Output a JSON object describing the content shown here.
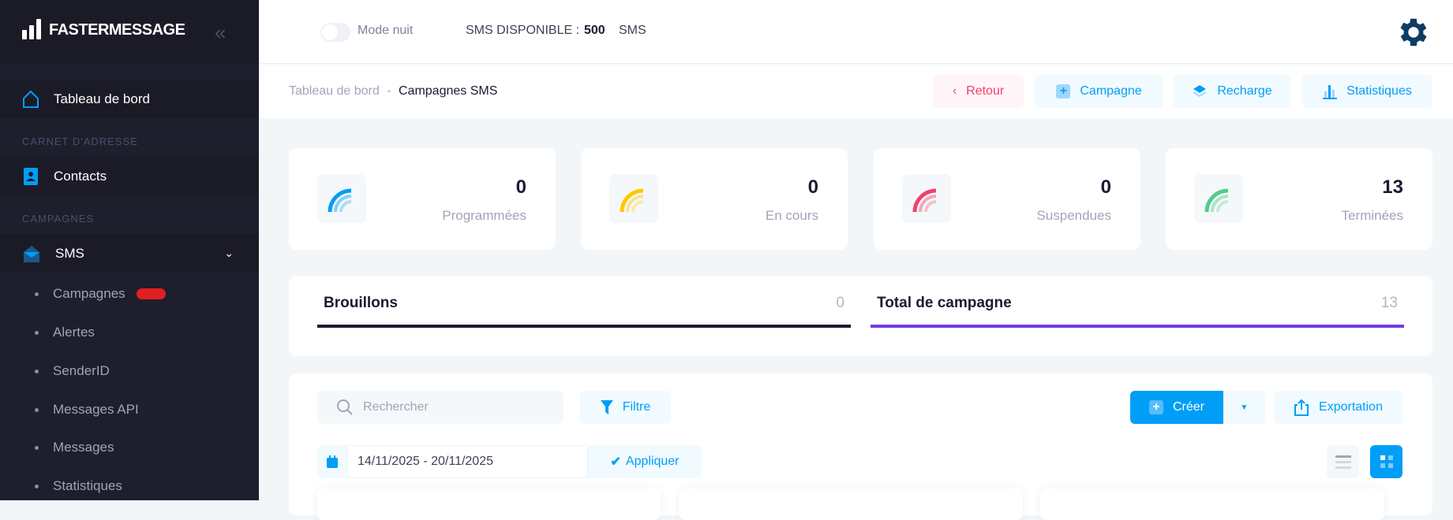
{
  "sidebar": {
    "brand": "FASTERMESSAGE",
    "dashboard": "Tableau de bord",
    "section_contacts": "CARNET D'ADRESSE",
    "contacts": "Contacts",
    "section_campaigns": "CAMPAGNES",
    "sms": "SMS",
    "sms_items": [
      {
        "label": "Campagnes"
      },
      {
        "label": "Alertes"
      },
      {
        "label": "SenderID"
      },
      {
        "label": "Messages API"
      },
      {
        "label": "Messages"
      },
      {
        "label": "Statistiques"
      }
    ]
  },
  "header": {
    "night_mode": "Mode nuit",
    "night_mode_on": false,
    "sms_label": "SMS DISPONIBLE :",
    "sms_count": "500",
    "sms_unit": "SMS"
  },
  "breadcrumb": {
    "parent": "Tableau de bord",
    "separator": "-",
    "current": "Campagnes SMS"
  },
  "toolbar": {
    "back": "Retour",
    "campaign": "Campagne",
    "recharge": "Recharge",
    "stats": "Statistiques"
  },
  "stats": [
    {
      "value": "0",
      "label": "Programmées",
      "color": "#009ef7"
    },
    {
      "value": "0",
      "label": "En cours",
      "color": "#ffc700"
    },
    {
      "value": "0",
      "label": "Suspendues",
      "color": "#f1416c"
    },
    {
      "value": "13",
      "label": "Terminées",
      "color": "#50cd89"
    }
  ],
  "tabs": [
    {
      "label": "Brouillons",
      "count": "0",
      "color": "#181c32"
    },
    {
      "label": "Total de campagne",
      "count": "13",
      "color": "#7239ea"
    }
  ],
  "list": {
    "search_placeholder": "Rechercher",
    "filter": "Filtre",
    "create": "Créer",
    "export": "Exportation",
    "date_range": "14/11/2025 - 20/11/2025",
    "apply": "Appliquer",
    "view_mode": "grid"
  }
}
